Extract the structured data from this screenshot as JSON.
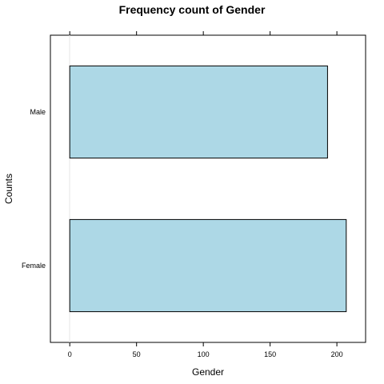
{
  "chart_data": {
    "type": "bar",
    "orientation": "horizontal",
    "title": "Frequency count of Gender",
    "xlabel": "Gender",
    "ylabel": "Counts",
    "categories": [
      "Female",
      "Male"
    ],
    "values": [
      207,
      193
    ],
    "xlim": [
      -14.5,
      221.5
    ],
    "xticks": [
      0,
      50,
      100,
      150,
      200
    ],
    "bar_color": "#add8e6",
    "grid": false,
    "legend": "none"
  }
}
